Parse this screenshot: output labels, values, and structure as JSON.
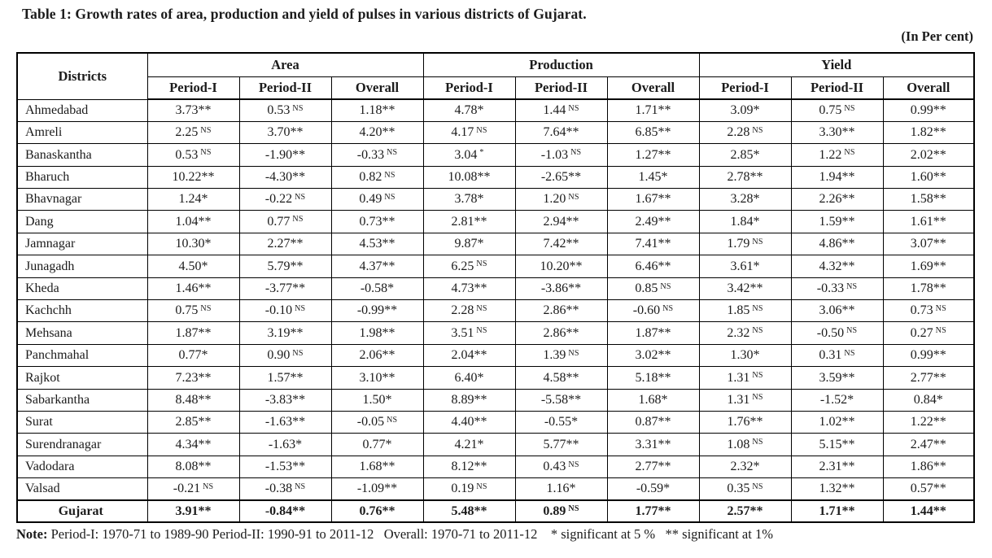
{
  "title": "Table 1: Growth rates of area, production and yield of pulses in various districts of Gujarat.",
  "unit_label": "(In Per cent)",
  "table": {
    "districts_header": "Districts",
    "groups": [
      "Area",
      "Production",
      "Yield"
    ],
    "sub_headers": [
      "Period-I",
      "Period-II",
      "Overall"
    ],
    "rows": [
      {
        "district": "Ahmedabad",
        "cells": [
          "3.73**",
          "0.53^NS",
          "1.18**",
          "4.78*",
          "1.44^NS",
          "1.71**",
          "3.09*",
          "0.75^NS",
          "0.99**"
        ]
      },
      {
        "district": "Amreli",
        "cells": [
          "2.25^NS",
          "3.70**",
          "4.20**",
          "4.17^NS",
          "7.64**",
          "6.85**",
          "2.28^NS",
          "3.30**",
          "1.82**"
        ]
      },
      {
        "district": "Banaskantha",
        "cells": [
          "0.53^NS",
          "-1.90**",
          "-0.33^NS",
          "3.04^*",
          "-1.03^NS",
          "1.27**",
          "2.85*",
          "1.22^NS",
          "2.02**"
        ]
      },
      {
        "district": "Bharuch",
        "cells": [
          "10.22**",
          "-4.30**",
          "0.82^NS",
          "10.08**",
          "-2.65**",
          "1.45*",
          "2.78**",
          "1.94**",
          "1.60**"
        ]
      },
      {
        "district": "Bhavnagar",
        "cells": [
          "1.24*",
          "-0.22^NS",
          "0.49^NS",
          "3.78*",
          "1.20^NS",
          "1.67**",
          "3.28*",
          "2.26**",
          "1.58**"
        ]
      },
      {
        "district": "Dang",
        "cells": [
          "1.04**",
          "0.77^NS",
          "0.73**",
          "2.81**",
          "2.94**",
          "2.49**",
          "1.84*",
          "1.59**",
          "1.61**"
        ]
      },
      {
        "district": "Jamnagar",
        "cells": [
          "10.30*",
          "2.27**",
          "4.53**",
          "9.87*",
          "7.42**",
          "7.41**",
          "1.79^NS",
          "4.86**",
          "3.07**"
        ]
      },
      {
        "district": "Junagadh",
        "cells": [
          "4.50*",
          "5.79**",
          "4.37**",
          "6.25^NS",
          "10.20**",
          "6.46**",
          "3.61*",
          "4.32**",
          "1.69**"
        ]
      },
      {
        "district": "Kheda",
        "cells": [
          "1.46**",
          "-3.77**",
          "-0.58*",
          "4.73**",
          "-3.86**",
          "0.85^NS",
          "3.42**",
          "-0.33^NS",
          "1.78**"
        ]
      },
      {
        "district": "Kachchh",
        "cells": [
          "0.75^NS",
          "-0.10^NS",
          "-0.99**",
          "2.28^NS",
          "2.86**",
          "-0.60^NS",
          "1.85^NS",
          "3.06**",
          "0.73^NS"
        ]
      },
      {
        "district": "Mehsana",
        "cells": [
          "1.87**",
          "3.19**",
          "1.98**",
          "3.51^NS",
          "2.86**",
          "1.87**",
          "2.32^NS",
          "-0.50^NS",
          "0.27^NS"
        ]
      },
      {
        "district": "Panchmahal",
        "cells": [
          "0.77*",
          "0.90^NS",
          "2.06**",
          "2.04**",
          "1.39^NS",
          "3.02**",
          "1.30*",
          "0.31^NS",
          "0.99**"
        ]
      },
      {
        "district": "Rajkot",
        "cells": [
          "7.23**",
          "1.57**",
          "3.10**",
          "6.40*",
          "4.58**",
          "5.18**",
          "1.31^NS",
          "3.59**",
          "2.77**"
        ]
      },
      {
        "district": "Sabarkantha",
        "cells": [
          "8.48**",
          "-3.83**",
          "1.50*",
          "8.89**",
          "-5.58**",
          "1.68*",
          "1.31^NS",
          "-1.52*",
          "0.84*"
        ]
      },
      {
        "district": "Surat",
        "cells": [
          "2.85**",
          "-1.63**",
          "-0.05^NS",
          "4.40**",
          "-0.55*",
          "0.87**",
          "1.76**",
          "1.02**",
          "1.22**"
        ]
      },
      {
        "district": "Surendranagar",
        "cells": [
          "4.34**",
          "-1.63*",
          "0.77*",
          "4.21*",
          "5.77**",
          "3.31**",
          "1.08^NS",
          "5.15**",
          "2.47**"
        ]
      },
      {
        "district": "Vadodara",
        "cells": [
          "8.08**",
          "-1.53**",
          "1.68**",
          "8.12**",
          "0.43^NS",
          "2.77**",
          "2.32*",
          "2.31**",
          "1.86**"
        ]
      },
      {
        "district": "Valsad",
        "cells": [
          "-0.21^NS",
          "-0.38^NS",
          "-1.09**",
          "0.19^NS",
          "1.16*",
          "-0.59*",
          "0.35^NS",
          "1.32**",
          "0.57**"
        ]
      },
      {
        "district": "Gujarat",
        "bold": true,
        "cells": [
          "3.91**",
          "-0.84**",
          "0.76**",
          "5.48**",
          "0.89^NS",
          "1.77**",
          "2.57**",
          "1.71**",
          "1.44**"
        ]
      }
    ]
  },
  "note": {
    "label": "Note:",
    "text": " Period-I: 1970-71 to 1989-90 Period-II: 1990-91 to 2011-12   Overall: 1970-71 to 2011-12    * significant at 5 %   ** significant at 1%"
  }
}
